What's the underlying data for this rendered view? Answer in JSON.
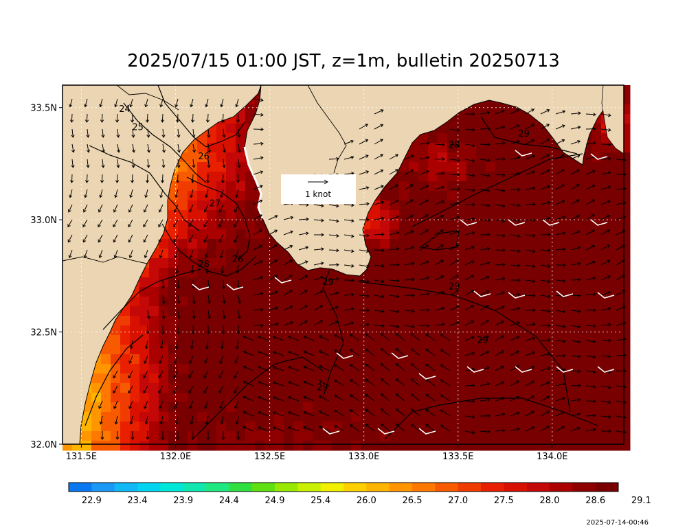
{
  "title": "2025/07/15 01:00 JST, z=1m, bulletin 20250713",
  "timestamp": "2025-07-14-00:46",
  "legend": {
    "vector_label": "1 knot"
  },
  "lat_ticks": [
    "33.5N",
    "33.0N",
    "32.5N",
    "32.0N"
  ],
  "lon_ticks": [
    "131.5E",
    "132.0E",
    "132.5E",
    "133.0E",
    "133.5E",
    "134.0E"
  ],
  "contour_labels": [
    {
      "text": "24",
      "lon": 131.73,
      "lat": 33.48
    },
    {
      "text": "25",
      "lon": 131.8,
      "lat": 33.4
    },
    {
      "text": "26",
      "lon": 132.15,
      "lat": 33.27
    },
    {
      "text": "27",
      "lon": 132.21,
      "lat": 33.06
    },
    {
      "text": "28",
      "lon": 132.15,
      "lat": 32.79
    },
    {
      "text": "26",
      "lon": 132.33,
      "lat": 32.81
    },
    {
      "text": "28",
      "lon": 133.48,
      "lat": 33.32
    },
    {
      "text": "29",
      "lon": 133.85,
      "lat": 33.37
    },
    {
      "text": "29",
      "lon": 132.81,
      "lat": 32.71
    },
    {
      "text": "29",
      "lon": 133.48,
      "lat": 32.69
    },
    {
      "text": "29",
      "lon": 133.63,
      "lat": 32.45
    },
    {
      "text": "29",
      "lon": 132.78,
      "lat": 32.24
    }
  ],
  "colorbar": {
    "colors": [
      "#0a78f0",
      "#1a98f5",
      "#10b8f5",
      "#00d4f0",
      "#00e8d8",
      "#10e8b0",
      "#20e880",
      "#30e040",
      "#60e010",
      "#98e800",
      "#c8f000",
      "#f0f000",
      "#ffd000",
      "#ffb400",
      "#ff9600",
      "#ff7800",
      "#f85a00",
      "#f03c00",
      "#e82000",
      "#d81000",
      "#c40808",
      "#aa0000",
      "#8e0000",
      "#780000"
    ],
    "labels": [
      "22.9",
      "23.4",
      "23.9",
      "24.4",
      "24.9",
      "25.4",
      "26.0",
      "26.5",
      "27.0",
      "27.5",
      "28.0",
      "28.6",
      "29.1"
    ]
  },
  "colors": {
    "land": "#ecd5b2",
    "coast": "#000000",
    "vector": "#000000",
    "grid": "#ffffff"
  }
}
